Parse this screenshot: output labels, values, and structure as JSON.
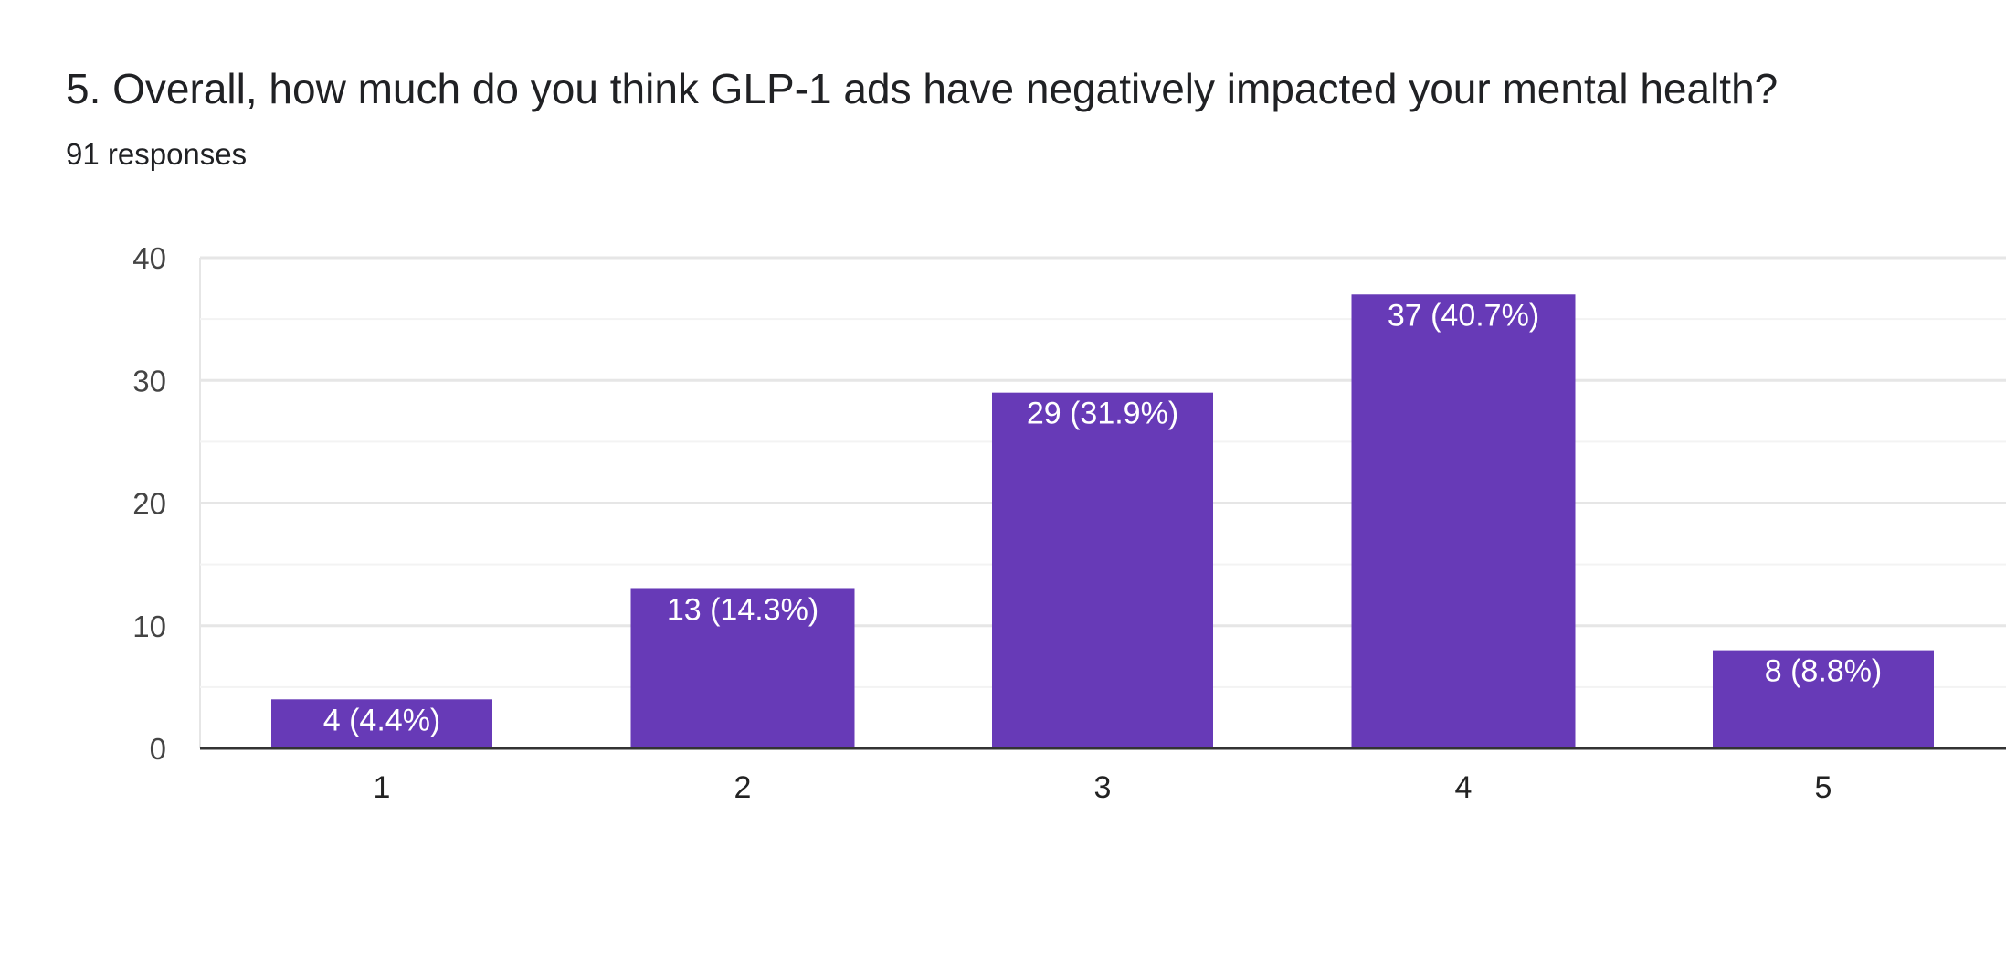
{
  "question": {
    "title": "5. Overall, how much do you think GLP-1 ads have negatively impacted your mental health?",
    "response_count": "91 responses"
  },
  "colors": {
    "bar": "#673ab7",
    "major_grid": "#e6e6e6",
    "minor_grid": "#f3f3f3",
    "baseline": "#333333"
  },
  "chart_data": {
    "type": "bar",
    "title": "5. Overall, how much do you think GLP-1 ads have negatively impacted your mental health?",
    "categories": [
      "1",
      "2",
      "3",
      "4",
      "5"
    ],
    "values": [
      4,
      13,
      29,
      37,
      8
    ],
    "data_labels": [
      "4 (4.4%)",
      "13 (14.3%)",
      "29 (31.9%)",
      "37 (40.7%)",
      "8 (8.8%)"
    ],
    "yticks": [
      0,
      10,
      20,
      30,
      40
    ],
    "ylim": [
      0,
      40
    ],
    "grid": true,
    "legend": "none"
  }
}
